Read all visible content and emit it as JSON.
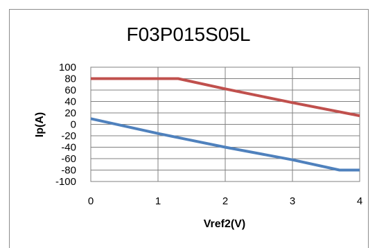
{
  "chart_data": {
    "type": "line",
    "title": "F03P015S05L",
    "xlabel": "Vref2(V)",
    "ylabel": "Ip(A)",
    "xlim": [
      0,
      4
    ],
    "ylim": [
      -100,
      100
    ],
    "x_ticks": [
      0,
      1,
      2,
      3,
      4
    ],
    "y_ticks": [
      100,
      80,
      60,
      40,
      20,
      0,
      -20,
      -40,
      -60,
      -80,
      -100
    ],
    "grid": true,
    "legend": "none",
    "series": [
      {
        "color": "#c0504d",
        "points": [
          [
            0,
            80
          ],
          [
            1.3,
            80
          ],
          [
            2.0,
            62
          ],
          [
            3.0,
            38
          ],
          [
            4.0,
            15
          ]
        ]
      },
      {
        "color": "#4f81bd",
        "points": [
          [
            0,
            10
          ],
          [
            1.0,
            -16
          ],
          [
            2.0,
            -40
          ],
          [
            3.0,
            -62
          ],
          [
            3.7,
            -80
          ],
          [
            4.0,
            -80
          ]
        ]
      }
    ]
  }
}
